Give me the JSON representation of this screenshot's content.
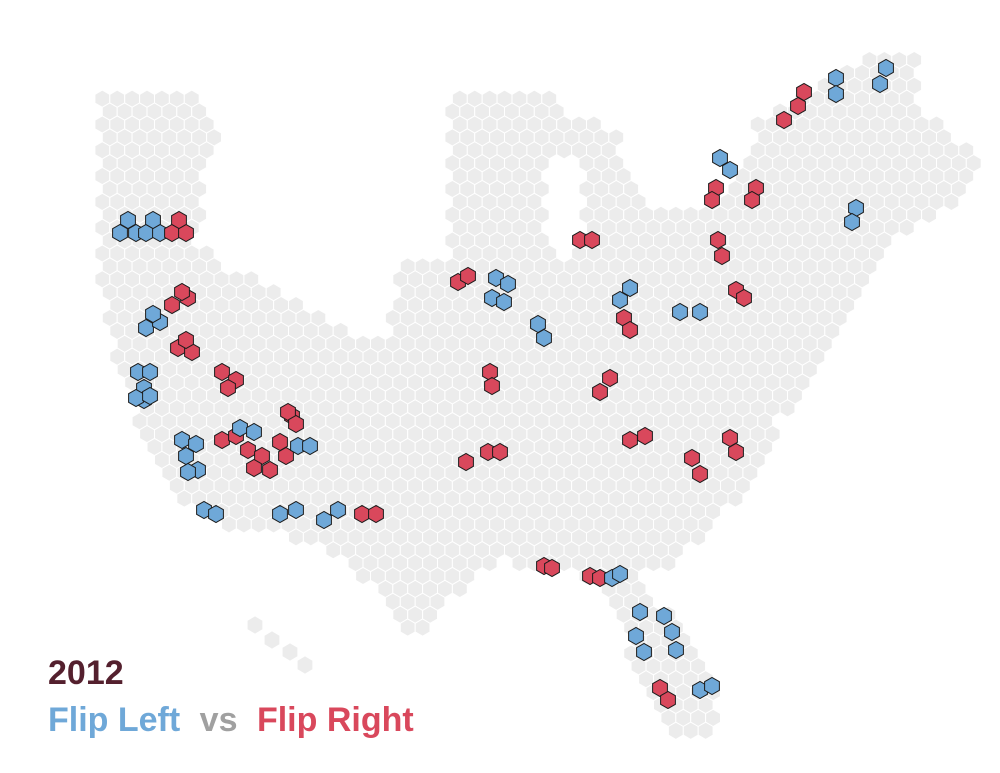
{
  "year": "2012",
  "legend": {
    "left": "Flip Left",
    "vs": "vs",
    "right": "Flip Right"
  },
  "colors": {
    "left": "#6fa8d8",
    "right": "#d9485c",
    "base": "#ececec",
    "vs": "#a0a0a0",
    "title": "#54202e"
  },
  "clusters": [
    {
      "name": "cluster-west-coast-north-a",
      "side": "left"
    },
    {
      "name": "cluster-west-coast-north-b",
      "side": "left"
    },
    {
      "name": "cluster-west-coast-north-c",
      "side": "right"
    },
    {
      "name": "cluster-west-coast-mid-a",
      "side": "left"
    },
    {
      "name": "cluster-west-coast-mid-b",
      "side": "right"
    },
    {
      "name": "cluster-west-coast-mid-c",
      "side": "right"
    },
    {
      "name": "cluster-west-coast-south",
      "side": "left"
    },
    {
      "name": "cluster-inland-west-a",
      "side": "right"
    },
    {
      "name": "cluster-southwest-core-a",
      "side": "left"
    },
    {
      "name": "cluster-southwest-core-b",
      "side": "right"
    },
    {
      "name": "cluster-southwest-core-c",
      "side": "left"
    },
    {
      "name": "cluster-southwest-core-d",
      "side": "right"
    },
    {
      "name": "cluster-south-border-a",
      "side": "left"
    },
    {
      "name": "cluster-south-border-b",
      "side": "left"
    },
    {
      "name": "cluster-south-border-c",
      "side": "left"
    },
    {
      "name": "cluster-south-border-d",
      "side": "right"
    },
    {
      "name": "cluster-plains-a",
      "side": "right"
    },
    {
      "name": "cluster-plains-b",
      "side": "left"
    },
    {
      "name": "cluster-plains-c",
      "side": "left"
    },
    {
      "name": "cluster-plains-d",
      "side": "right"
    },
    {
      "name": "cluster-plains-e",
      "side": "right"
    },
    {
      "name": "cluster-great-lakes-a",
      "side": "right"
    },
    {
      "name": "cluster-great-lakes-b",
      "side": "left"
    },
    {
      "name": "cluster-great-lakes-c",
      "side": "right"
    },
    {
      "name": "cluster-great-lakes-d",
      "side": "left"
    },
    {
      "name": "cluster-ohio-a",
      "side": "right"
    },
    {
      "name": "cluster-ohio-b",
      "side": "right"
    },
    {
      "name": "cluster-southeast-a",
      "side": "right"
    },
    {
      "name": "cluster-southeast-b",
      "side": "right"
    },
    {
      "name": "cluster-southeast-c",
      "side": "right"
    },
    {
      "name": "cluster-northeast-a",
      "side": "left"
    },
    {
      "name": "cluster-northeast-b",
      "side": "right"
    },
    {
      "name": "cluster-northeast-c",
      "side": "right"
    },
    {
      "name": "cluster-northeast-d",
      "side": "right"
    },
    {
      "name": "cluster-northeast-e",
      "side": "left"
    },
    {
      "name": "cluster-northeast-f",
      "side": "left"
    },
    {
      "name": "cluster-northeast-g",
      "side": "right"
    },
    {
      "name": "cluster-northeast-h",
      "side": "left"
    },
    {
      "name": "cluster-gulf-a",
      "side": "right"
    },
    {
      "name": "cluster-gulf-b",
      "side": "right"
    },
    {
      "name": "cluster-gulf-c",
      "side": "left"
    },
    {
      "name": "cluster-florida-a",
      "side": "left"
    },
    {
      "name": "cluster-florida-b",
      "side": "left"
    },
    {
      "name": "cluster-florida-c",
      "side": "right"
    },
    {
      "name": "cluster-florida-d",
      "side": "left"
    }
  ]
}
